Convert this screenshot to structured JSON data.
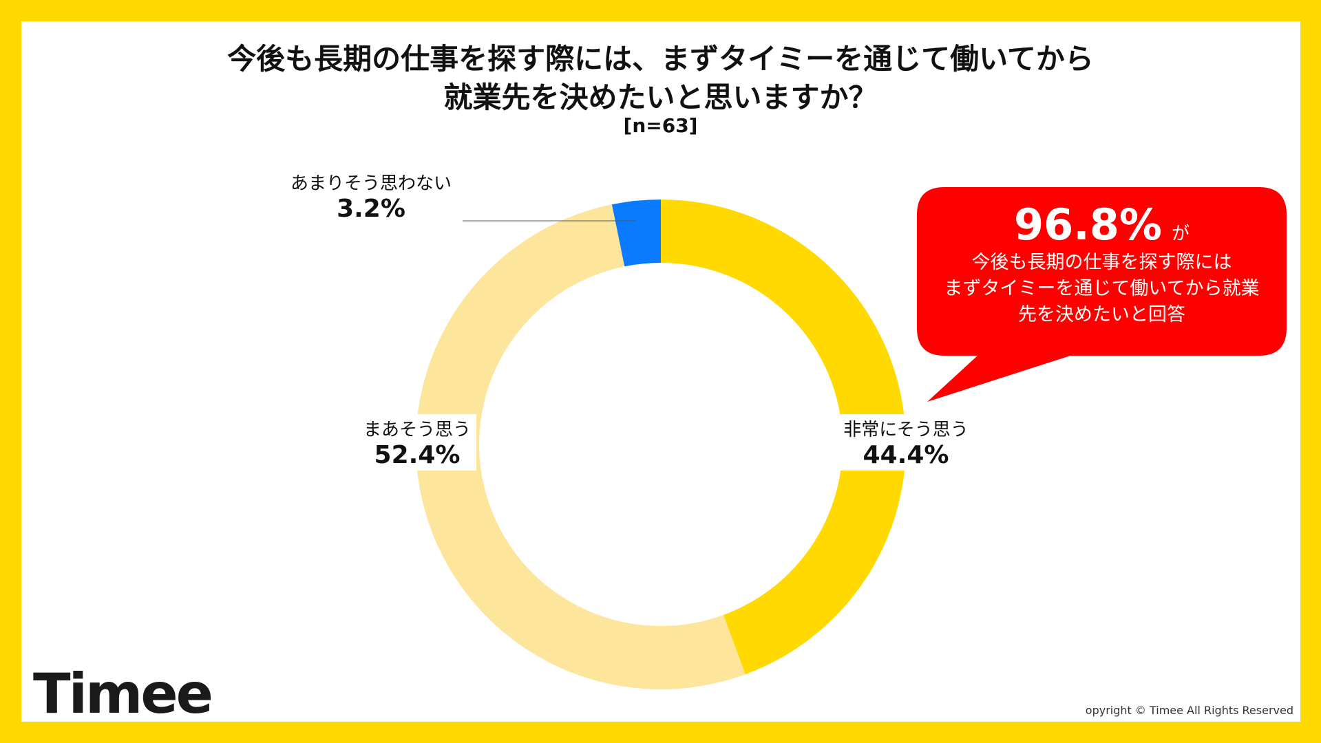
{
  "chart_data": {
    "type": "pie",
    "variant": "donut",
    "title": [
      "今後も長期の仕事を探す際には、まずタイミーを通じて働いてから",
      "就業先を決めたいと思いますか？"
    ],
    "subtitle": "[n=63]",
    "slices": [
      {
        "label": "非常にそう思う",
        "value": 44.4,
        "display": "44.4%",
        "color": "#FFD900"
      },
      {
        "label": "まあそう思う",
        "value": 52.4,
        "display": "52.4%",
        "color": "#FDE59B"
      },
      {
        "label": "あまりそう思わない",
        "value": 3.2,
        "display": "3.2%",
        "color": "#0A7BFF"
      }
    ],
    "start": "top",
    "direction": "clockwise"
  },
  "callout": {
    "value": "96.8%",
    "suffix": "が",
    "lines": [
      "今後も長期の仕事を探す際には",
      "まずタイミーを通じて働いてから就業",
      "先を決めたいと回答"
    ],
    "color": "#FF0000"
  },
  "colors": {
    "frame": "#FFD900"
  },
  "logo": "Timee",
  "copyright": "opyright © Timee All Rights Reserved"
}
